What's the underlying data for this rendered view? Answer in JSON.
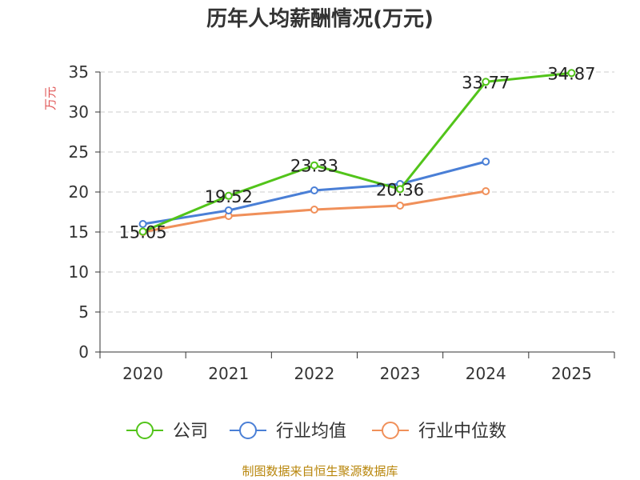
{
  "chart_data": {
    "type": "line",
    "title": "历年人均薪酬情况(万元)",
    "ylabel": "万元",
    "xlabel": "",
    "categories": [
      "2020",
      "2021",
      "2022",
      "2023",
      "2024",
      "2025"
    ],
    "ylim": [
      0,
      35
    ],
    "yticks": [
      0,
      5,
      10,
      15,
      20,
      25,
      30,
      35
    ],
    "grid": true,
    "legend_position": "bottom",
    "series": [
      {
        "name": "公司",
        "color": "#52c41a",
        "values": [
          15.05,
          19.52,
          23.33,
          20.36,
          33.77,
          34.87
        ],
        "labels": [
          "15.05",
          "19.52",
          "23.33",
          "20.36",
          "33.77",
          "34.87"
        ]
      },
      {
        "name": "行业均值",
        "color": "#4a7fd6",
        "values": [
          16.0,
          17.7,
          20.2,
          21.0,
          23.8,
          null
        ]
      },
      {
        "name": "行业中位数",
        "color": "#f0905a",
        "values": [
          15.0,
          17.0,
          17.8,
          18.3,
          20.1,
          null
        ]
      }
    ]
  },
  "source": "制图数据来自恒生聚源数据库"
}
